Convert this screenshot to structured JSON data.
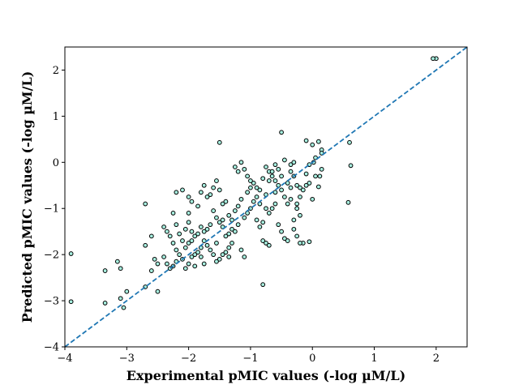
{
  "chart_data": {
    "type": "scatter",
    "title": "",
    "xlabel": "Experimental pMIC values (-log µM/L)",
    "ylabel": "Predicted pMIC values (-log µM/L)",
    "xlim": [
      -4,
      2.5
    ],
    "ylim": [
      -4,
      2.5
    ],
    "xticks": [
      -4,
      -3,
      -2,
      -1,
      0,
      1,
      2
    ],
    "yticks": [
      -4,
      -3,
      -2,
      -1,
      0,
      1,
      2
    ],
    "xtick_labels": [
      "−4",
      "−3",
      "−2",
      "−1",
      "0",
      "1",
      "2"
    ],
    "ytick_labels": [
      "−4",
      "−3",
      "−2",
      "−1",
      "0",
      "1",
      "2"
    ],
    "grid": false,
    "marker_face_color": "#a8f0e0",
    "marker_edge_color": "#000000",
    "reference_line": {
      "style": "dashed",
      "color": "#1f77b4",
      "from": [
        -4,
        -4
      ],
      "to": [
        2.5,
        2.5
      ]
    },
    "points": [
      [
        2.0,
        2.25
      ],
      [
        1.95,
        2.25
      ],
      [
        0.6,
        0.43
      ],
      [
        0.62,
        -0.07
      ],
      [
        0.58,
        -0.87
      ],
      [
        0.15,
        0.27
      ],
      [
        0.15,
        0.2
      ],
      [
        0.1,
        0.45
      ],
      [
        0.05,
        0.1
      ],
      [
        0.0,
        0.38
      ],
      [
        -0.1,
        0.47
      ],
      [
        0.02,
        0.0
      ],
      [
        -0.05,
        -0.05
      ],
      [
        0.15,
        -0.15
      ],
      [
        0.12,
        -0.3
      ],
      [
        0.05,
        -0.3
      ],
      [
        -0.05,
        -0.45
      ],
      [
        -0.1,
        -0.5
      ],
      [
        0.0,
        -0.8
      ],
      [
        0.1,
        -0.53
      ],
      [
        -0.05,
        -1.72
      ],
      [
        -0.15,
        -1.75
      ],
      [
        -0.2,
        -1.75
      ],
      [
        -0.25,
        -1.6
      ],
      [
        -0.3,
        -1.45
      ],
      [
        -0.4,
        -1.7
      ],
      [
        -0.45,
        -1.65
      ],
      [
        -0.5,
        -1.5
      ],
      [
        -0.55,
        -1.35
      ],
      [
        -0.3,
        -1.25
      ],
      [
        -0.2,
        -1.15
      ],
      [
        -0.25,
        -0.9
      ],
      [
        -0.35,
        -0.8
      ],
      [
        -0.4,
        -0.9
      ],
      [
        -0.45,
        -0.75
      ],
      [
        -0.5,
        -0.6
      ],
      [
        -0.55,
        -0.5
      ],
      [
        -0.6,
        -0.4
      ],
      [
        -0.65,
        -0.3
      ],
      [
        -0.7,
        -0.2
      ],
      [
        -0.75,
        -0.1
      ],
      [
        -0.8,
        -0.35
      ],
      [
        -0.5,
        0.65
      ],
      [
        -0.45,
        0.05
      ],
      [
        -0.35,
        -0.05
      ],
      [
        -0.3,
        -0.3
      ],
      [
        -0.25,
        -0.5
      ],
      [
        -0.2,
        -0.55
      ],
      [
        -0.35,
        -0.55
      ],
      [
        -0.6,
        -0.9
      ],
      [
        -0.65,
        -1.0
      ],
      [
        -0.7,
        -1.1
      ],
      [
        -0.75,
        -0.7
      ],
      [
        -0.85,
        -0.6
      ],
      [
        -0.9,
        -0.55
      ],
      [
        -0.95,
        -0.45
      ],
      [
        -1.0,
        -0.4
      ],
      [
        -1.05,
        -0.3
      ],
      [
        -1.1,
        -0.15
      ],
      [
        -1.15,
        0.0
      ],
      [
        -1.2,
        -0.2
      ],
      [
        -1.25,
        -0.1
      ],
      [
        -0.8,
        -1.3
      ],
      [
        -0.85,
        -1.4
      ],
      [
        -0.9,
        -1.25
      ],
      [
        -0.8,
        -1.7
      ],
      [
        -0.75,
        -1.75
      ],
      [
        -0.7,
        -1.8
      ],
      [
        -0.8,
        -2.65
      ],
      [
        -1.05,
        -1.1
      ],
      [
        -1.1,
        -1.2
      ],
      [
        -1.0,
        -1.0
      ],
      [
        -0.95,
        -0.85
      ],
      [
        -1.15,
        -0.8
      ],
      [
        -1.2,
        -0.95
      ],
      [
        -1.25,
        -1.05
      ],
      [
        -1.3,
        -1.25
      ],
      [
        -1.35,
        -1.15
      ],
      [
        -1.4,
        -0.85
      ],
      [
        -1.45,
        -0.9
      ],
      [
        -1.5,
        -0.6
      ],
      [
        -1.55,
        -0.4
      ],
      [
        -1.6,
        -0.55
      ],
      [
        -1.65,
        -0.7
      ],
      [
        -1.7,
        -0.75
      ],
      [
        -1.75,
        -0.5
      ],
      [
        -1.8,
        -0.65
      ],
      [
        -1.5,
        0.43
      ],
      [
        -1.3,
        -1.45
      ],
      [
        -1.35,
        -1.55
      ],
      [
        -1.4,
        -1.6
      ],
      [
        -1.45,
        -1.4
      ],
      [
        -1.5,
        -1.3
      ],
      [
        -1.55,
        -1.2
      ],
      [
        -1.6,
        -1.05
      ],
      [
        -1.65,
        -1.35
      ],
      [
        -1.7,
        -1.45
      ],
      [
        -1.75,
        -1.5
      ],
      [
        -1.8,
        -1.4
      ],
      [
        -1.85,
        -1.55
      ],
      [
        -1.9,
        -1.6
      ],
      [
        -1.95,
        -1.7
      ],
      [
        -2.0,
        -1.75
      ],
      [
        -2.05,
        -1.85
      ],
      [
        -1.3,
        -1.75
      ],
      [
        -1.35,
        -1.85
      ],
      [
        -1.4,
        -1.95
      ],
      [
        -1.45,
        -2.0
      ],
      [
        -1.5,
        -2.1
      ],
      [
        -1.55,
        -2.15
      ],
      [
        -1.6,
        -2.0
      ],
      [
        -1.65,
        -1.9
      ],
      [
        -1.7,
        -1.8
      ],
      [
        -1.75,
        -1.7
      ],
      [
        -1.8,
        -1.85
      ],
      [
        -1.85,
        -1.95
      ],
      [
        -1.9,
        -2.0
      ],
      [
        -1.95,
        -2.05
      ],
      [
        -2.0,
        -2.2
      ],
      [
        -2.05,
        -2.3
      ],
      [
        -2.1,
        -2.1
      ],
      [
        -2.15,
        -2.0
      ],
      [
        -2.2,
        -1.9
      ],
      [
        -2.25,
        -1.75
      ],
      [
        -2.3,
        -1.6
      ],
      [
        -2.35,
        -1.5
      ],
      [
        -2.4,
        -1.4
      ],
      [
        -2.2,
        -2.15
      ],
      [
        -2.25,
        -2.25
      ],
      [
        -2.3,
        -2.3
      ],
      [
        -2.35,
        -2.2
      ],
      [
        -2.4,
        -2.05
      ],
      [
        -2.5,
        -2.2
      ],
      [
        -2.6,
        -2.35
      ],
      [
        -2.7,
        -2.7
      ],
      [
        -2.5,
        -2.8
      ],
      [
        -2.6,
        -1.6
      ],
      [
        -2.7,
        -1.8
      ],
      [
        -2.7,
        -0.9
      ],
      [
        -2.25,
        -1.1
      ],
      [
        -2.2,
        -0.65
      ],
      [
        -2.1,
        -0.6
      ],
      [
        -2.0,
        -0.75
      ],
      [
        -1.95,
        -0.85
      ],
      [
        -1.85,
        -0.95
      ],
      [
        -2.0,
        -1.1
      ],
      [
        -2.0,
        -1.3
      ],
      [
        -2.05,
        -1.45
      ],
      [
        -2.15,
        -1.55
      ],
      [
        -2.1,
        -1.7
      ],
      [
        -3.0,
        -2.8
      ],
      [
        -3.05,
        -3.15
      ],
      [
        -3.1,
        -2.95
      ],
      [
        -3.15,
        -2.15
      ],
      [
        -3.1,
        -2.3
      ],
      [
        -3.35,
        -2.35
      ],
      [
        -3.35,
        -3.05
      ],
      [
        -3.9,
        -1.98
      ],
      [
        -3.9,
        -3.02
      ],
      [
        -2.55,
        -2.1
      ],
      [
        -0.1,
        -0.25
      ],
      [
        -0.15,
        -0.6
      ],
      [
        -0.2,
        -0.75
      ],
      [
        -0.25,
        -1.0
      ],
      [
        -0.55,
        -0.15
      ],
      [
        -0.6,
        -0.05
      ],
      [
        -0.65,
        -0.2
      ],
      [
        -0.7,
        -0.4
      ],
      [
        -1.2,
        -1.35
      ],
      [
        -1.25,
        -1.5
      ],
      [
        -1.15,
        -1.9
      ],
      [
        -1.1,
        -2.05
      ],
      [
        -1.35,
        -2.05
      ],
      [
        -1.45,
        -1.25
      ],
      [
        -1.55,
        -1.75
      ],
      [
        -1.75,
        -2.2
      ],
      [
        -1.8,
        -2.05
      ],
      [
        -1.9,
        -2.25
      ],
      [
        -2.2,
        -1.35
      ],
      [
        -1.95,
        -1.5
      ],
      [
        -1.0,
        -0.55
      ],
      [
        -0.9,
        -0.75
      ],
      [
        -0.85,
        -0.9
      ],
      [
        -0.75,
        -1.0
      ],
      [
        -0.6,
        -0.65
      ],
      [
        -0.5,
        -0.3
      ],
      [
        -0.4,
        -0.45
      ],
      [
        -0.35,
        -0.2
      ],
      [
        -0.3,
        0.0
      ],
      [
        -1.05,
        -0.65
      ]
    ]
  }
}
